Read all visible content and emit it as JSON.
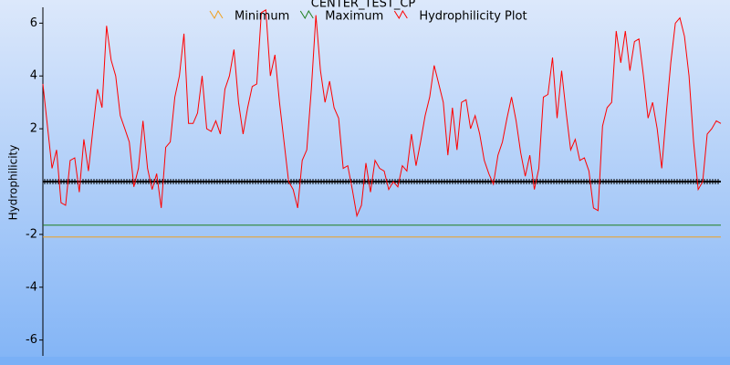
{
  "chart_data": {
    "type": "line",
    "title": "CENTER_TEST_CP",
    "y_label": "Hydrophilicity",
    "ylim": [
      -6.6,
      6.6
    ],
    "yticks": [
      -6,
      -4,
      -2,
      2,
      4,
      6
    ],
    "baseline": 0,
    "reference_lines": [
      {
        "name": "Minimum",
        "color": "#f0a020",
        "value": -2.1
      },
      {
        "name": "Maximum",
        "color": "#208020",
        "value": -1.65
      }
    ],
    "series": [
      {
        "name": "Hydrophilicity Plot",
        "color": "#ff0000",
        "values": [
          3.7,
          2.1,
          0.5,
          1.2,
          -0.8,
          -0.9,
          0.8,
          0.9,
          -0.4,
          1.6,
          0.4,
          2.0,
          3.5,
          2.8,
          5.9,
          4.6,
          4.0,
          2.5,
          2.0,
          1.5,
          -0.2,
          0.5,
          2.3,
          0.5,
          -0.3,
          0.3,
          -1.0,
          1.3,
          1.5,
          3.2,
          4.0,
          5.6,
          2.2,
          2.2,
          2.6,
          4.0,
          2.0,
          1.9,
          2.3,
          1.8,
          3.5,
          4.0,
          5.0,
          3.0,
          1.8,
          2.8,
          3.6,
          3.7,
          6.4,
          6.5,
          4.0,
          4.8,
          3.0,
          1.5,
          0.0,
          -0.3,
          -1.0,
          0.8,
          1.2,
          3.5,
          6.3,
          4.2,
          3.0,
          3.8,
          2.8,
          2.4,
          0.5,
          0.6,
          -0.3,
          -1.3,
          -0.9,
          0.7,
          -0.4,
          0.8,
          0.5,
          0.4,
          -0.3,
          0.0,
          -0.2,
          0.6,
          0.4,
          1.8,
          0.6,
          1.5,
          2.5,
          3.2,
          4.4,
          3.7,
          3.0,
          1.0,
          2.8,
          1.2,
          3.0,
          3.1,
          2.0,
          2.5,
          1.8,
          0.8,
          0.3,
          -0.1,
          1.0,
          1.5,
          2.4,
          3.2,
          2.3,
          1.1,
          0.2,
          1.0,
          -0.3,
          0.5,
          3.2,
          3.3,
          4.7,
          2.4,
          4.2,
          2.6,
          1.2,
          1.6,
          0.8,
          0.9,
          0.4,
          -1.0,
          -1.1,
          2.1,
          2.8,
          3.0,
          5.7,
          4.5,
          5.7,
          4.2,
          5.3,
          5.4,
          4.0,
          2.4,
          3.0,
          2.0,
          0.5,
          2.6,
          4.5,
          6.0,
          6.2,
          5.5,
          4.0,
          1.5,
          -0.3,
          0.0,
          1.8,
          2.0,
          2.3,
          2.2
        ]
      }
    ]
  }
}
